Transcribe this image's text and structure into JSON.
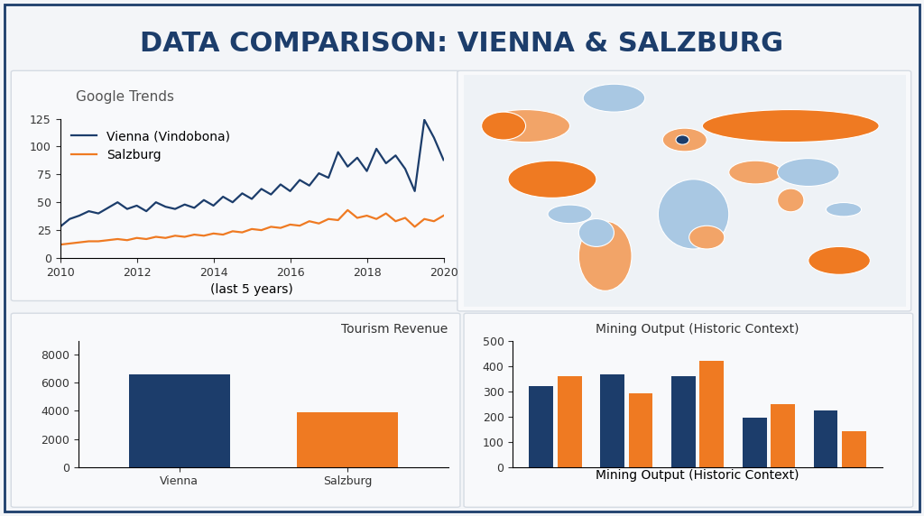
{
  "title": "DATA COMPARISON: VIENNA & SALZBURG",
  "chart_data": [
    {
      "type": "line",
      "title": "Google Trends",
      "xlabel": "(last 5 years)",
      "x": [
        2010.0,
        2010.25,
        2010.5,
        2010.75,
        2011.0,
        2011.25,
        2011.5,
        2011.75,
        2012.0,
        2012.25,
        2012.5,
        2012.75,
        2013.0,
        2013.25,
        2013.5,
        2013.75,
        2014.0,
        2014.25,
        2014.5,
        2014.75,
        2015.0,
        2015.25,
        2015.5,
        2015.75,
        2016.0,
        2016.25,
        2016.5,
        2016.75,
        2017.0,
        2017.25,
        2017.5,
        2017.75,
        2018.0,
        2018.25,
        2018.5,
        2018.75,
        2019.0,
        2019.25,
        2019.5,
        2019.75,
        2020.0
      ],
      "series": [
        {
          "name": "Vienna (Vindobona)",
          "color": "#1c3d6b",
          "values": [
            28,
            35,
            38,
            42,
            40,
            45,
            50,
            44,
            47,
            42,
            50,
            46,
            44,
            48,
            45,
            52,
            47,
            55,
            50,
            58,
            53,
            62,
            57,
            66,
            60,
            70,
            65,
            76,
            72,
            95,
            82,
            90,
            78,
            98,
            85,
            92,
            80,
            60,
            124,
            108,
            88
          ]
        },
        {
          "name": "Salzburg",
          "color": "#ef7a22",
          "values": [
            12,
            13,
            14,
            15,
            15,
            16,
            17,
            16,
            18,
            17,
            19,
            18,
            20,
            19,
            21,
            20,
            22,
            21,
            24,
            23,
            26,
            25,
            28,
            27,
            30,
            29,
            33,
            31,
            35,
            34,
            43,
            36,
            38,
            35,
            40,
            33,
            36,
            28,
            35,
            33,
            38
          ]
        }
      ],
      "xlim": [
        2010,
        2020
      ],
      "xticks": [
        2010,
        2012,
        2014,
        2016,
        2018,
        2020
      ],
      "ylim": [
        0,
        125
      ],
      "yticks": [
        0,
        25,
        50,
        75,
        100,
        125
      ],
      "legend": "upper left",
      "grid": false
    },
    {
      "type": "bar",
      "title": "Tourism Revenue",
      "categories": [
        "Vienna",
        "Salzburg"
      ],
      "values": [
        6600,
        3900
      ],
      "colors": [
        "#1c3d6b",
        "#ef7a22"
      ],
      "ylim": [
        0,
        9000
      ],
      "yticks": [
        0,
        2000,
        4000,
        6000,
        8000
      ],
      "grid": false
    },
    {
      "type": "bar",
      "title": "Mining Output (Historic Context)",
      "xlabel": "Mining Output (Historic Context)",
      "categories": [
        null,
        null,
        null,
        null,
        null
      ],
      "series": [
        {
          "color": "#1c3d6b",
          "values": [
            320,
            365,
            360,
            195,
            225
          ]
        },
        {
          "color": "#ef7a22",
          "values": [
            360,
            290,
            420,
            250,
            140
          ]
        }
      ],
      "ylim": [
        0,
        500
      ],
      "yticks": [
        0,
        100,
        200,
        300,
        400,
        500
      ],
      "grid": false
    }
  ]
}
